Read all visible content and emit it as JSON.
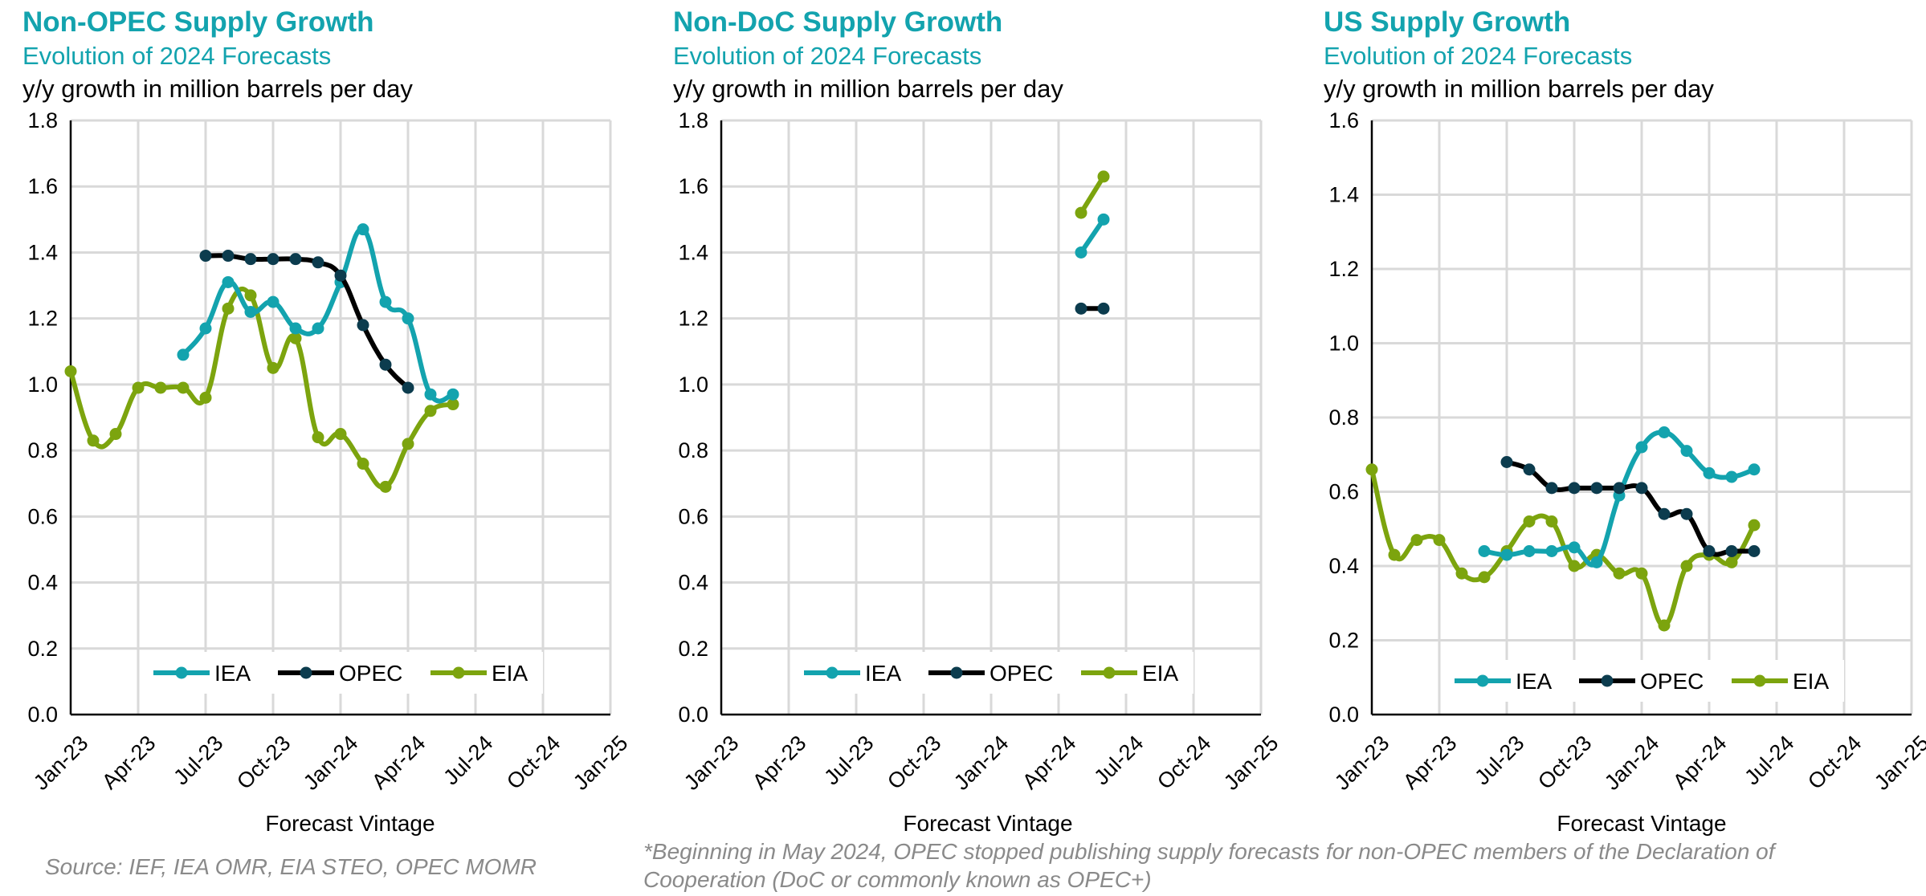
{
  "colors": {
    "IEA": "#13A3AE",
    "OPEC": "#0C3C4E",
    "OPEC_line": "#000000",
    "EIA": "#7CA40E",
    "grid": "#D9D9D9",
    "title": "#13A3AE",
    "note": "#8a8a8a"
  },
  "x_tick_labels": [
    "Jan-23",
    "Apr-23",
    "Jul-23",
    "Oct-23",
    "Jan-24",
    "Apr-24",
    "Jul-24",
    "Oct-24",
    "Jan-25"
  ],
  "chart_data": [
    {
      "type": "line",
      "title": "Non-OPEC Supply Growth",
      "subtitle": "Evolution of 2024 Forecasts",
      "ylabel": "y/y growth in million barrels per day",
      "xlabel": "Forecast Vintage",
      "x_range_months": [
        0,
        24
      ],
      "ylim": [
        0,
        1.8
      ],
      "y_ticks": [
        "0.0",
        "0.2",
        "0.4",
        "0.6",
        "0.8",
        "1.0",
        "1.2",
        "1.4",
        "1.6",
        "1.8"
      ],
      "legend": [
        "IEA",
        "OPEC",
        "EIA"
      ],
      "legend_position": "bottom-center",
      "series": [
        {
          "name": "IEA",
          "x": [
            5,
            6,
            7,
            8,
            9,
            10,
            11,
            12,
            13,
            14,
            15,
            16,
            17
          ],
          "values": [
            1.09,
            1.17,
            1.31,
            1.22,
            1.25,
            1.17,
            1.17,
            1.31,
            1.47,
            1.25,
            1.2,
            0.97,
            0.97
          ]
        },
        {
          "name": "OPEC",
          "x": [
            6,
            7,
            8,
            9,
            10,
            11,
            12,
            13,
            14,
            15
          ],
          "values": [
            1.39,
            1.39,
            1.38,
            1.38,
            1.38,
            1.37,
            1.33,
            1.18,
            1.06,
            0.99
          ]
        },
        {
          "name": "EIA",
          "x": [
            0,
            1,
            2,
            3,
            4,
            5,
            6,
            7,
            8,
            9,
            10,
            11,
            12,
            13,
            14,
            15,
            16,
            17
          ],
          "values": [
            1.04,
            0.83,
            0.85,
            0.99,
            0.99,
            0.99,
            0.96,
            1.23,
            1.27,
            1.05,
            1.14,
            0.84,
            0.85,
            0.76,
            0.69,
            0.82,
            0.92,
            0.94
          ]
        }
      ]
    },
    {
      "type": "line",
      "title": "Non-DoC Supply Growth",
      "subtitle": "Evolution of 2024 Forecasts",
      "ylabel": "y/y growth in million barrels per day",
      "xlabel": "Forecast Vintage",
      "x_range_months": [
        0,
        24
      ],
      "ylim": [
        0,
        1.8
      ],
      "y_ticks": [
        "0.0",
        "0.2",
        "0.4",
        "0.6",
        "0.8",
        "1.0",
        "1.2",
        "1.4",
        "1.6",
        "1.8"
      ],
      "legend": [
        "IEA",
        "OPEC",
        "EIA"
      ],
      "legend_position": "bottom-center",
      "series": [
        {
          "name": "IEA",
          "x": [
            16,
            17
          ],
          "values": [
            1.4,
            1.5
          ]
        },
        {
          "name": "OPEC",
          "x": [
            16,
            17
          ],
          "values": [
            1.23,
            1.23
          ]
        },
        {
          "name": "EIA",
          "x": [
            16,
            17
          ],
          "values": [
            1.52,
            1.63
          ]
        }
      ]
    },
    {
      "type": "line",
      "title": "US Supply Growth",
      "subtitle": "Evolution of 2024 Forecasts",
      "ylabel": "y/y growth in million barrels per day",
      "xlabel": "Forecast Vintage",
      "x_range_months": [
        0,
        24
      ],
      "ylim": [
        0,
        1.6
      ],
      "y_ticks": [
        "0.0",
        "0.2",
        "0.4",
        "0.6",
        "0.8",
        "1.0",
        "1.2",
        "1.4",
        "1.6"
      ],
      "legend": [
        "IEA",
        "OPEC",
        "EIA"
      ],
      "legend_position": "bottom-center",
      "series": [
        {
          "name": "IEA",
          "x": [
            5,
            6,
            7,
            8,
            9,
            10,
            11,
            12,
            13,
            14,
            15,
            16,
            17
          ],
          "values": [
            0.44,
            0.43,
            0.44,
            0.44,
            0.45,
            0.41,
            0.59,
            0.72,
            0.76,
            0.71,
            0.65,
            0.64,
            0.66
          ]
        },
        {
          "name": "OPEC",
          "x": [
            6,
            7,
            8,
            9,
            10,
            11,
            12,
            13,
            14,
            15,
            16,
            17
          ],
          "values": [
            0.68,
            0.66,
            0.61,
            0.61,
            0.61,
            0.61,
            0.61,
            0.54,
            0.54,
            0.44,
            0.44,
            0.44
          ]
        },
        {
          "name": "EIA",
          "x": [
            0,
            1,
            2,
            3,
            4,
            5,
            6,
            7,
            8,
            9,
            10,
            11,
            12,
            13,
            14,
            15,
            16,
            17
          ],
          "values": [
            0.66,
            0.43,
            0.47,
            0.47,
            0.38,
            0.37,
            0.44,
            0.52,
            0.52,
            0.4,
            0.43,
            0.38,
            0.38,
            0.24,
            0.4,
            0.43,
            0.41,
            0.51
          ]
        }
      ]
    }
  ],
  "notes": {
    "source": "Source: IEF, IEA OMR, EIA STEO, OPEC MOMR",
    "footnote_line1": "*Beginning in May 2024, OPEC stopped publishing supply forecasts for non-OPEC members of the Declaration of",
    "footnote_line2": "Cooperation (DoC or commonly known as OPEC+)"
  }
}
